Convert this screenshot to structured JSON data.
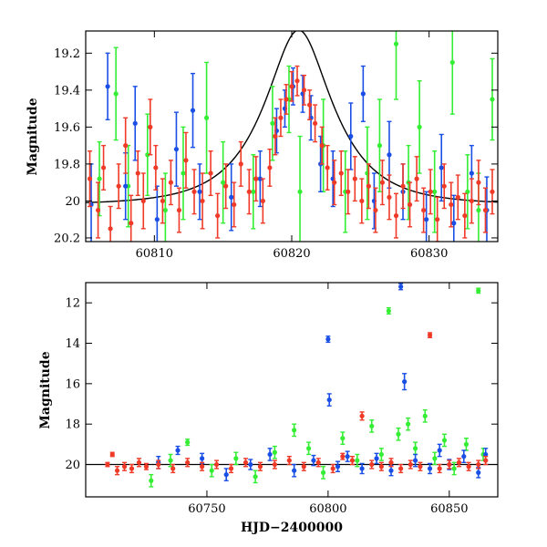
{
  "colors": {
    "green": "#33ee33",
    "blue": "#1a4fe6",
    "red": "#f03a28",
    "model": "#000000",
    "frame": "#000000"
  },
  "chart_data": [
    {
      "type": "scatter",
      "panel": "top",
      "title": "",
      "xlabel": "",
      "ylabel": "Magnitude",
      "xlim": [
        60805,
        60835
      ],
      "ylim": [
        20.22,
        19.08
      ],
      "y_inverted": true,
      "grid": false,
      "legend": "none",
      "x_ticks": [
        60810,
        60820,
        60830
      ],
      "y_ticks": [
        19.2,
        19.4,
        19.6,
        19.8,
        20,
        20.2
      ],
      "model_curve": {
        "description_of_shape": "single-lens microlensing light curve",
        "t0": 60820.5,
        "tE": 4.5,
        "u0": 0.45,
        "baseline": 20.02
      },
      "series": [
        {
          "color_key": "green",
          "points": [
            [
              60806.0,
              19.88,
              0.2
            ],
            [
              60807.2,
              19.42,
              0.25
            ],
            [
              60808.1,
              19.92,
              0.22
            ],
            [
              60809.5,
              19.75,
              0.22
            ],
            [
              60810.8,
              20.05,
              0.2
            ],
            [
              60812.1,
              19.85,
              0.25
            ],
            [
              60813.8,
              19.55,
              0.3
            ],
            [
              60815.0,
              19.9,
              0.22
            ],
            [
              60817.2,
              19.95,
              0.2
            ],
            [
              60818.6,
              19.58,
              0.2
            ],
            [
              60819.8,
              19.45,
              0.18
            ],
            [
              60820.6,
              19.95,
              0.3
            ],
            [
              60822.3,
              19.7,
              0.25
            ],
            [
              60823.9,
              19.95,
              0.22
            ],
            [
              60825.5,
              19.85,
              0.25
            ],
            [
              60826.4,
              19.7,
              0.25
            ],
            [
              60827.6,
              19.15,
              0.3
            ],
            [
              60828.5,
              19.9,
              0.2
            ],
            [
              60829.3,
              19.6,
              0.25
            ],
            [
              60830.4,
              19.95,
              0.22
            ],
            [
              60831.7,
              19.25,
              0.28
            ],
            [
              60832.8,
              19.95,
              0.2
            ],
            [
              60833.6,
              20.05,
              0.2
            ],
            [
              60834.6,
              19.45,
              0.22
            ]
          ]
        },
        {
          "color_key": "blue",
          "points": [
            [
              60805.4,
              20.02,
              0.22
            ],
            [
              60806.6,
              19.38,
              0.18
            ],
            [
              60807.9,
              19.92,
              0.18
            ],
            [
              60808.6,
              19.58,
              0.2
            ],
            [
              60810.2,
              20.1,
              0.18
            ],
            [
              60811.6,
              19.72,
              0.2
            ],
            [
              60812.8,
              19.51,
              0.2
            ],
            [
              60813.3,
              19.95,
              0.15
            ],
            [
              60815.6,
              19.98,
              0.18
            ],
            [
              60817.7,
              19.88,
              0.15
            ],
            [
              60818.9,
              19.62,
              0.12
            ],
            [
              60819.5,
              19.5,
              0.1
            ],
            [
              60820.1,
              19.38,
              0.1
            ],
            [
              60820.8,
              19.42,
              0.1
            ],
            [
              60821.4,
              19.55,
              0.12
            ],
            [
              60822.1,
              19.8,
              0.15
            ],
            [
              60823.0,
              19.88,
              0.15
            ],
            [
              60824.3,
              19.65,
              0.18
            ],
            [
              60825.2,
              19.42,
              0.15
            ],
            [
              60826.0,
              20.0,
              0.15
            ],
            [
              60827.1,
              19.75,
              0.18
            ],
            [
              60828.1,
              19.95,
              0.15
            ],
            [
              60829.8,
              20.1,
              0.15
            ],
            [
              60830.9,
              19.82,
              0.18
            ],
            [
              60831.8,
              20.12,
              0.15
            ],
            [
              60833.1,
              19.85,
              0.15
            ],
            [
              60834.2,
              20.05,
              0.18
            ]
          ]
        },
        {
          "color_key": "red",
          "points": [
            [
              60805.3,
              19.88,
              0.15
            ],
            [
              60805.9,
              20.05,
              0.15
            ],
            [
              60806.3,
              19.82,
              0.12
            ],
            [
              60806.8,
              20.15,
              0.12
            ],
            [
              60807.4,
              19.92,
              0.12
            ],
            [
              60807.9,
              19.7,
              0.15
            ],
            [
              60808.3,
              20.12,
              0.15
            ],
            [
              60808.8,
              19.85,
              0.12
            ],
            [
              60809.2,
              20.0,
              0.15
            ],
            [
              60809.7,
              19.6,
              0.15
            ],
            [
              60810.1,
              19.82,
              0.12
            ],
            [
              60810.6,
              20.0,
              0.12
            ],
            [
              60811.2,
              19.9,
              0.12
            ],
            [
              60811.8,
              20.05,
              0.12
            ],
            [
              60812.3,
              19.78,
              0.15
            ],
            [
              60812.9,
              19.95,
              0.12
            ],
            [
              60813.5,
              20.0,
              0.15
            ],
            [
              60814.1,
              19.85,
              0.12
            ],
            [
              60814.6,
              20.08,
              0.12
            ],
            [
              60815.2,
              19.92,
              0.12
            ],
            [
              60815.8,
              20.02,
              0.12
            ],
            [
              60816.3,
              19.8,
              0.12
            ],
            [
              60816.9,
              19.95,
              0.12
            ],
            [
              60817.4,
              19.88,
              0.12
            ],
            [
              60817.9,
              20.0,
              0.12
            ],
            [
              60818.4,
              19.82,
              0.1
            ],
            [
              60818.8,
              19.65,
              0.1
            ],
            [
              60819.2,
              19.55,
              0.1
            ],
            [
              60819.6,
              19.45,
              0.08
            ],
            [
              60820.0,
              19.38,
              0.08
            ],
            [
              60820.4,
              19.35,
              0.08
            ],
            [
              60820.9,
              19.4,
              0.08
            ],
            [
              60821.3,
              19.48,
              0.08
            ],
            [
              60821.7,
              19.58,
              0.1
            ],
            [
              60822.2,
              19.7,
              0.1
            ],
            [
              60822.6,
              19.82,
              0.12
            ],
            [
              60823.1,
              19.9,
              0.12
            ],
            [
              60823.6,
              19.85,
              0.12
            ],
            [
              60824.1,
              19.95,
              0.12
            ],
            [
              60824.6,
              19.88,
              0.12
            ],
            [
              60825.1,
              20.0,
              0.12
            ],
            [
              60825.6,
              19.92,
              0.12
            ],
            [
              60826.1,
              20.05,
              0.12
            ],
            [
              60826.6,
              19.9,
              0.12
            ],
            [
              60827.1,
              19.98,
              0.12
            ],
            [
              60827.6,
              20.08,
              0.12
            ],
            [
              60828.1,
              19.92,
              0.12
            ],
            [
              60828.6,
              20.02,
              0.12
            ],
            [
              60829.1,
              19.88,
              0.12
            ],
            [
              60829.6,
              20.05,
              0.12
            ],
            [
              60830.1,
              19.95,
              0.12
            ],
            [
              60830.6,
              20.1,
              0.12
            ],
            [
              60831.1,
              19.92,
              0.12
            ],
            [
              60831.6,
              20.02,
              0.12
            ],
            [
              60832.1,
              19.98,
              0.12
            ],
            [
              60832.6,
              20.08,
              0.12
            ],
            [
              60833.1,
              20.0,
              0.12
            ],
            [
              60833.6,
              19.9,
              0.12
            ],
            [
              60834.1,
              20.05,
              0.12
            ],
            [
              60834.6,
              19.95,
              0.12
            ]
          ]
        }
      ]
    },
    {
      "type": "scatter",
      "panel": "bottom",
      "title": "",
      "xlabel": "HJD−2400000",
      "ylabel": "Magnitude",
      "xlim": [
        60700,
        60870
      ],
      "ylim": [
        21.6,
        11.0
      ],
      "y_inverted": true,
      "grid": false,
      "legend": "none",
      "x_ticks": [
        60750,
        60800,
        60850
      ],
      "y_ticks": [
        12,
        14,
        16,
        18,
        20
      ],
      "baseline_mag": 20.0,
      "series": [
        {
          "color_key": "green",
          "points": [
            [
              60727,
              20.8,
              0.3
            ],
            [
              60735,
              19.8,
              0.3
            ],
            [
              60742,
              18.9,
              0.15
            ],
            [
              60752,
              20.3,
              0.3
            ],
            [
              60762,
              19.7,
              0.3
            ],
            [
              60770,
              20.6,
              0.3
            ],
            [
              60778,
              19.4,
              0.3
            ],
            [
              60786,
              18.3,
              0.3
            ],
            [
              60792,
              19.2,
              0.3
            ],
            [
              60798,
              20.4,
              0.3
            ],
            [
              60806,
              18.7,
              0.3
            ],
            [
              60812,
              19.8,
              0.3
            ],
            [
              60818,
              18.1,
              0.3
            ],
            [
              60822,
              19.5,
              0.3
            ],
            [
              60825,
              12.4,
              0.15
            ],
            [
              60829,
              18.5,
              0.3
            ],
            [
              60833,
              18.0,
              0.3
            ],
            [
              60836,
              19.2,
              0.3
            ],
            [
              60840,
              17.6,
              0.3
            ],
            [
              60844,
              19.7,
              0.3
            ],
            [
              60848,
              18.8,
              0.3
            ],
            [
              60852,
              20.2,
              0.3
            ],
            [
              60857,
              19.0,
              0.3
            ],
            [
              60862,
              11.4,
              0.12
            ],
            [
              60864,
              19.5,
              0.3
            ]
          ]
        },
        {
          "color_key": "blue",
          "points": [
            [
              60730,
              19.9,
              0.3
            ],
            [
              60738,
              19.3,
              0.2
            ],
            [
              60748,
              19.7,
              0.25
            ],
            [
              60758,
              20.5,
              0.3
            ],
            [
              60768,
              20.0,
              0.25
            ],
            [
              60776,
              19.5,
              0.3
            ],
            [
              60786,
              20.3,
              0.3
            ],
            [
              60794,
              19.8,
              0.25
            ],
            [
              60800,
              13.8,
              0.15
            ],
            [
              60800.5,
              16.8,
              0.3
            ],
            [
              60804,
              20.1,
              0.25
            ],
            [
              60808,
              19.6,
              0.25
            ],
            [
              60814,
              20.2,
              0.25
            ],
            [
              60820,
              19.7,
              0.25
            ],
            [
              60826,
              20.3,
              0.25
            ],
            [
              60830,
              11.2,
              0.15
            ],
            [
              60831.5,
              15.9,
              0.4
            ],
            [
              60836,
              19.8,
              0.3
            ],
            [
              60842,
              20.2,
              0.25
            ],
            [
              60846,
              19.3,
              0.3
            ],
            [
              60850,
              20.0,
              0.25
            ],
            [
              60856,
              19.6,
              0.3
            ],
            [
              60862,
              20.4,
              0.25
            ],
            [
              60865,
              19.5,
              0.3
            ]
          ]
        },
        {
          "color_key": "red",
          "points": [
            [
              60709,
              20.0,
              0.1
            ],
            [
              60711,
              19.5,
              0.1
            ],
            [
              60713,
              20.3,
              0.2
            ],
            [
              60716,
              20.1,
              0.2
            ],
            [
              60719,
              20.2,
              0.2
            ],
            [
              60722,
              19.9,
              0.2
            ],
            [
              60725,
              20.1,
              0.15
            ],
            [
              60730,
              20.0,
              0.2
            ],
            [
              60736,
              20.2,
              0.2
            ],
            [
              60742,
              19.9,
              0.2
            ],
            [
              60748,
              20.1,
              0.2
            ],
            [
              60754,
              20.0,
              0.2
            ],
            [
              60760,
              20.2,
              0.2
            ],
            [
              60766,
              19.9,
              0.2
            ],
            [
              60772,
              20.1,
              0.2
            ],
            [
              60778,
              20.0,
              0.2
            ],
            [
              60784,
              19.8,
              0.2
            ],
            [
              60790,
              20.1,
              0.2
            ],
            [
              60796,
              19.9,
              0.2
            ],
            [
              60802,
              20.2,
              0.2
            ],
            [
              60806,
              19.6,
              0.15
            ],
            [
              60810,
              19.8,
              0.2
            ],
            [
              60814,
              17.6,
              0.2
            ],
            [
              60818,
              20.0,
              0.2
            ],
            [
              60822,
              20.1,
              0.2
            ],
            [
              60826,
              19.9,
              0.2
            ],
            [
              60830,
              20.2,
              0.2
            ],
            [
              60834,
              20.0,
              0.2
            ],
            [
              60838,
              20.1,
              0.2
            ],
            [
              60842,
              13.6,
              0.12
            ],
            [
              60846,
              20.2,
              0.2
            ],
            [
              60850,
              20.0,
              0.2
            ],
            [
              60854,
              19.9,
              0.2
            ],
            [
              60858,
              20.1,
              0.2
            ],
            [
              60862,
              20.0,
              0.2
            ],
            [
              60865,
              19.8,
              0.2
            ]
          ]
        }
      ]
    }
  ]
}
